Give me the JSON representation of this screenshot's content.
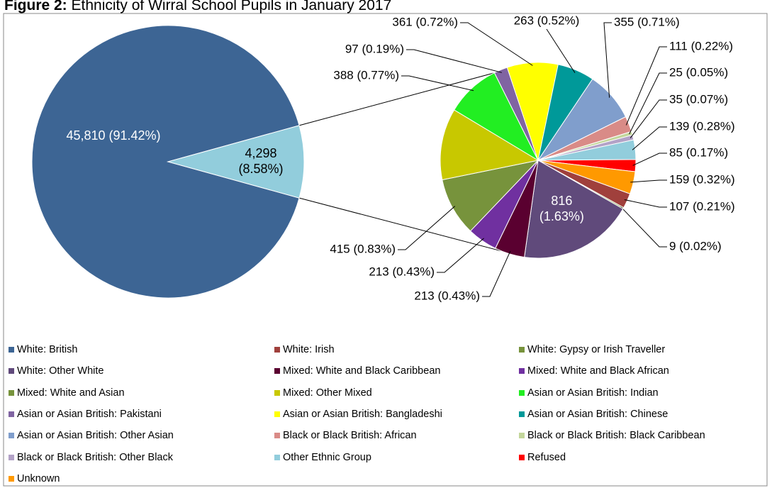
{
  "chart_data": {
    "type": "pie-of-pie",
    "figure_label": "Figure 2:",
    "title": "Ethnicity of Wirral School Pupils in January 2017",
    "categories": [
      "White: British",
      "White: Irish",
      "White: Gypsy or Irish Traveller",
      "White: Other White",
      "Mixed: White and Black Caribbean",
      "Mixed: White and Black African",
      "Mixed: White and Asian",
      "Mixed: Other Mixed",
      "Asian or Asian British: Indian",
      "Asian or Asian British: Pakistani",
      "Asian or Asian British: Bangladeshi",
      "Asian or Asian British: Chinese",
      "Asian or Asian British: Other Asian",
      "Black or Black British: African",
      "Black or Black British: Black Caribbean",
      "Black or Black British: Other Black",
      "Other Ethnic Group",
      "Refused",
      "Unknown"
    ],
    "values": [
      45810,
      107,
      9,
      816,
      213,
      213,
      415,
      507,
      388,
      97,
      361,
      263,
      355,
      111,
      25,
      35,
      139,
      85,
      159
    ],
    "value_labels": [
      "45,810 (91.42%)",
      "107 (0.21%)",
      "9 (0.02%)",
      "816 (1.63%)",
      "213 (0.43%)",
      "213 (0.43%)",
      "415 (0.83%)",
      null,
      "388 (0.77%)",
      "97 (0.19%)",
      "361 (0.72%)",
      "263 (0.52%)",
      "355 (0.71%)",
      "111 (0.22%)",
      "25 (0.05%)",
      "35 (0.07%)",
      "139 (0.28%)",
      "85 (0.17%)",
      "159 (0.32%)"
    ],
    "colors": [
      "#3d6594",
      "#a0403c",
      "#77933c",
      "#604a7b",
      "#5a0030",
      "#7030a0",
      "#77933c",
      "#c8c800",
      "#22ee22",
      "#8064a2",
      "#ffff00",
      "#009999",
      "#809ecc",
      "#d98b87",
      "#c3d69b",
      "#b3a2c7",
      "#92cddc",
      "#ff0000",
      "#ff9900"
    ],
    "other_value": 4298,
    "other_label": "4,298 (8.58%)",
    "other_color": "#92cddc"
  }
}
